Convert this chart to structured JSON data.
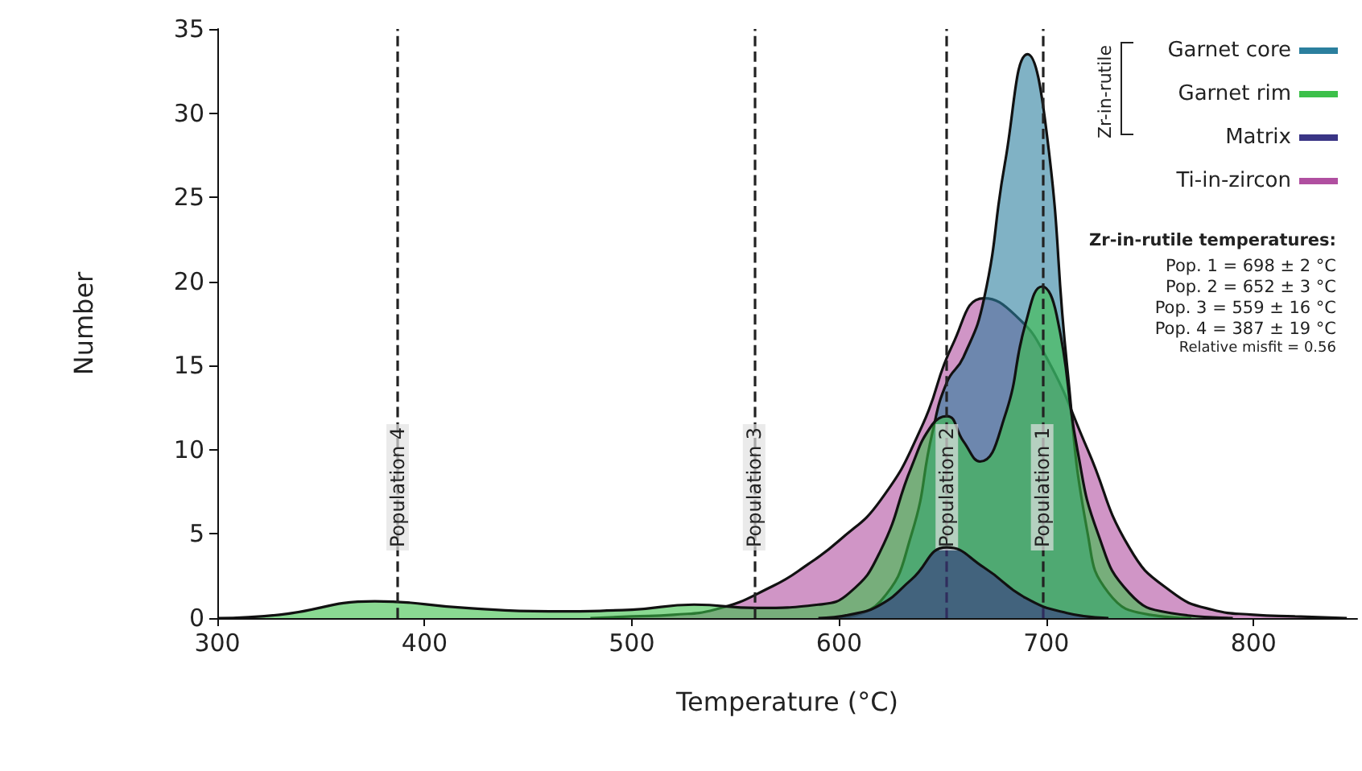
{
  "chart_data": {
    "type": "area",
    "xlabel": "Temperature (°C)",
    "ylabel": "Number",
    "xlim": [
      300,
      850
    ],
    "xticks": [
      300,
      400,
      500,
      600,
      700,
      800
    ],
    "ylim": [
      0,
      35
    ],
    "yticks": [
      0,
      5,
      10,
      15,
      20,
      25,
      30,
      35
    ],
    "grid": false,
    "legend": "top right",
    "marker": "none",
    "series": [
      {
        "name": "Garnet core",
        "color": "#2b7f9e",
        "x": [
          600,
          620,
          635,
          645,
          652,
          660,
          670,
          680,
          691,
          700,
          710,
          720,
          730,
          750,
          770
        ],
        "values": [
          0,
          1,
          5,
          11,
          14,
          15.5,
          19,
          27,
          33.5,
          29,
          15,
          5,
          1.5,
          0.2,
          0
        ]
      },
      {
        "name": "Garnet rim",
        "color": "#3cc04a",
        "x": [
          300,
          330,
          376,
          420,
          460,
          500,
          530,
          560,
          590,
          605,
          620,
          635,
          645,
          652,
          660,
          668,
          680,
          690,
          698,
          705,
          715,
          725,
          740,
          760,
          790
        ],
        "values": [
          0,
          0.2,
          1,
          0.6,
          0.4,
          0.5,
          0.8,
          0.6,
          0.8,
          1.5,
          4,
          9,
          11.5,
          12,
          10.5,
          9.3,
          12,
          17.5,
          19.7,
          18,
          10,
          5,
          1.5,
          0.3,
          0
        ]
      },
      {
        "name": "Matrix",
        "color": "#3a3585",
        "x": [
          590,
          605,
          620,
          635,
          652,
          670,
          690,
          710,
          730
        ],
        "values": [
          0,
          0.2,
          0.8,
          2.3,
          4.2,
          3,
          1.2,
          0.3,
          0
        ]
      },
      {
        "name": "Ti-in-zircon",
        "color": "#b04fa0",
        "x": [
          480,
          500,
          520,
          540,
          568,
          585,
          600,
          620,
          640,
          655,
          670,
          685,
          700,
          720,
          740,
          760,
          780,
          800,
          820,
          845
        ],
        "values": [
          0,
          0.1,
          0.2,
          0.5,
          1.9,
          3.2,
          4.6,
          7,
          11.4,
          16.3,
          19,
          18,
          15.5,
          10,
          4.2,
          1.6,
          0.5,
          0.2,
          0.1,
          0
        ]
      }
    ],
    "ref_lines": [
      {
        "axis": "x",
        "value": 698,
        "label": "Population 1",
        "line_style": "dashed",
        "color": "#222222"
      },
      {
        "axis": "x",
        "value": 652,
        "label": "Population 2",
        "line_style": "dashed",
        "color": "#222222"
      },
      {
        "axis": "x",
        "value": 559,
        "label": "Population 3",
        "line_style": "dashed",
        "color": "#222222"
      },
      {
        "axis": "x",
        "value": 387,
        "label": "Population 4",
        "line_style": "dashed",
        "color": "#222222"
      }
    ],
    "annotations": [
      "Zr-in-rutile",
      "Zr-in-rutile temperatures:",
      "Pop. 1 = 698 ± 2 °C",
      "Pop. 2 = 652 ± 3 °C",
      "Pop. 3 = 559 ± 16 °C",
      "Pop. 4 = 387 ± 19 °C",
      "Relative misfit = 0.56"
    ]
  }
}
